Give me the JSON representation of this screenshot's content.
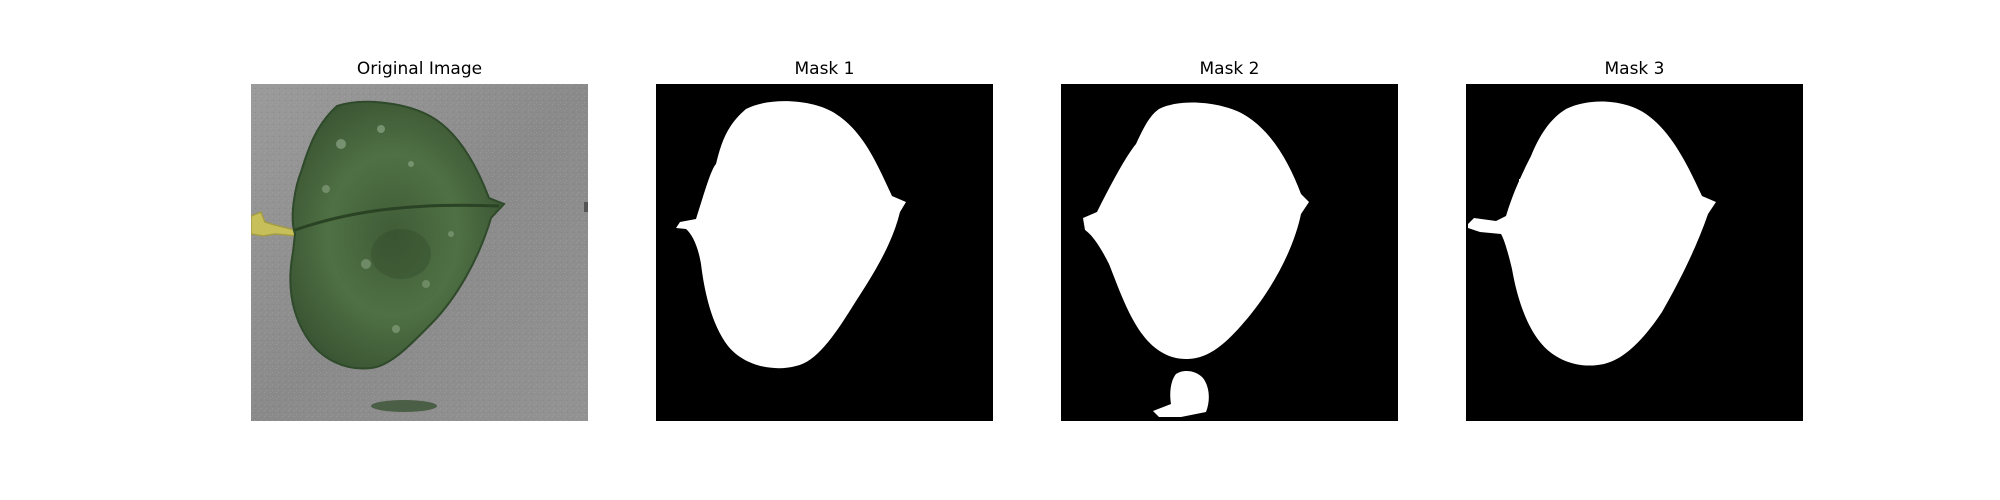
{
  "figure": {
    "panels": [
      {
        "title": "Original Image"
      },
      {
        "title": "Mask 1"
      },
      {
        "title": "Mask 2"
      },
      {
        "title": "Mask 3"
      }
    ]
  },
  "colors": {
    "background": "#ffffff",
    "mask_background": "#000000",
    "mask_foreground": "#ffffff",
    "leaf_green": "#4d6e42",
    "leaf_dark": "#2c4526",
    "photo_background": "#8f8f8f",
    "stem_yellow": "#c9c25e"
  }
}
